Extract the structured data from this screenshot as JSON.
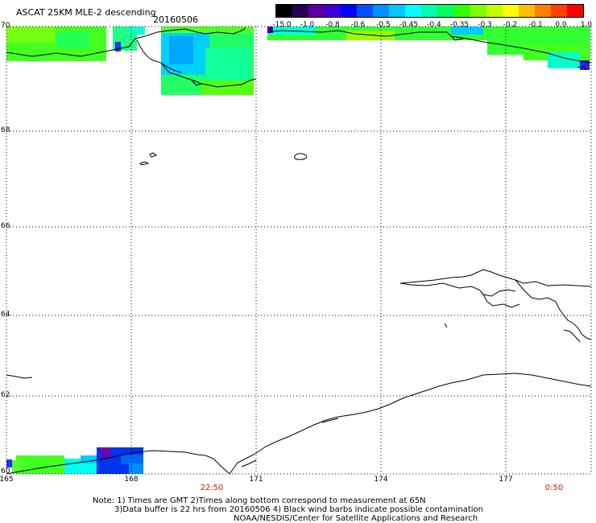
{
  "title": "ASCAT 25KM MLE-2 descending",
  "date": "20160506",
  "colorbar": {
    "labels": [
      "-15.0",
      "-1.0",
      "-0.8",
      "-0.6",
      "-0.5",
      "-0.45",
      "-0.4",
      "-0.35",
      "-0.3",
      "-0.2",
      "-0.1",
      "0.0",
      "1.0"
    ],
    "colors": [
      "#000000",
      "#2a0050",
      "#5a00a0",
      "#3a00d8",
      "#0000ff",
      "#0050ff",
      "#0090ff",
      "#00c8ff",
      "#00ffff",
      "#00ffb0",
      "#00ff60",
      "#30ff00",
      "#80ff00",
      "#c0ff00",
      "#ffff00",
      "#ffc000",
      "#ff8000",
      "#ff4000",
      "#ff0000"
    ]
  },
  "axes": {
    "lat_labels": [
      "70",
      "68",
      "66",
      "64",
      "62",
      "60"
    ],
    "lon_labels": [
      "165",
      "168",
      "171",
      "174",
      "177"
    ],
    "time_labels": [
      "22:50",
      "0:50"
    ]
  },
  "notes": [
    "Note: 1) Times are GMT 2)Times along bottom correspond to measurement at 65N",
    "3)Data buffer is 22 hrs from 20160506 4) Black wind barbs indicate possible contamination",
    "NOAA/NESDIS/Center for Satellite Applications and Research"
  ]
}
